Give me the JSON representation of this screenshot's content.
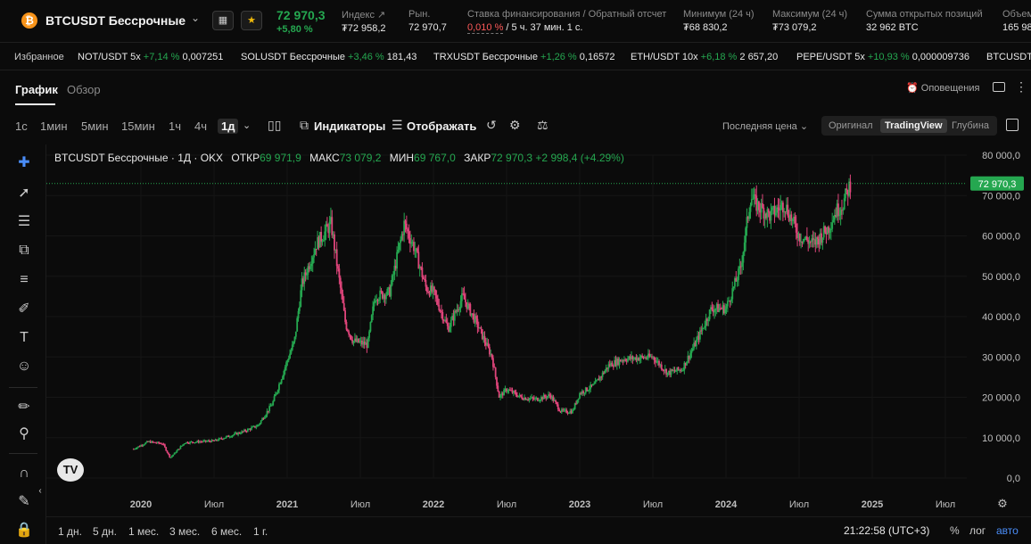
{
  "header": {
    "coin_icon": "bitcoin-icon",
    "coin_symbol": "₿",
    "pair": "BTCUSDT Бессрочные",
    "last_price": "72 970,3",
    "change": "+5,80 %",
    "stats": [
      {
        "label": "Индекс",
        "value": "₮72 958,2"
      },
      {
        "label": "Рын.",
        "value": "72 970,7"
      },
      {
        "label": "Ставка финансирования / Обратный отсчет",
        "value_red": "0,010 %",
        "value": " / 5 ч. 37 мин. 1 с."
      },
      {
        "label": "Минимум (24 ч)",
        "value": "₮68 830,2"
      },
      {
        "label": "Максимум (24 ч)",
        "value": "₮73 079,2"
      },
      {
        "label": "Сумма открытых позиций",
        "value": "32 962 BTC"
      },
      {
        "label": "Объем",
        "value": "165 98"
      }
    ]
  },
  "favorites": {
    "label": "Избранное",
    "items": [
      {
        "name": "NOT/USDT 5x",
        "change": "+7,14 %",
        "price": "0,007251"
      },
      {
        "name": "SOLUSDT Бессрочные",
        "change": "+3,46 %",
        "price": "181,43"
      },
      {
        "name": "TRXUSDT Бессрочные",
        "change": "+1,26 %",
        "price": "0,16572"
      },
      {
        "name": "ETH/USDT 10x",
        "change": "+6,18 %",
        "price": "2 657,20"
      },
      {
        "name": "PEPE/USDT 5x",
        "change": "+10,93 %",
        "price": "0,000009736"
      },
      {
        "name": "BTCUSDT",
        "change": "",
        "price": ""
      }
    ]
  },
  "tabs": {
    "chart": "График",
    "overview": "Обзор",
    "alerts": "Оповещения"
  },
  "toolbar": {
    "timeframes": [
      "1с",
      "1мин",
      "5мин",
      "15мин",
      "1ч",
      "4ч",
      "1д"
    ],
    "selected_timeframe": "1д",
    "indicators": "Индикаторы",
    "display": "Отображать",
    "price_source": "Последняя цена",
    "views": [
      "Оригинал",
      "TradingView",
      "Глубина"
    ],
    "selected_view": "TradingView"
  },
  "legend": {
    "title": "BTCUSDT Бессрочные · 1Д · OKX",
    "open_label": "ОТКР",
    "open": "69 971,9",
    "high_label": "МАКС",
    "high": "73 079,2",
    "low_label": "МИН",
    "low": "69 767,0",
    "close_label": "ЗАКР",
    "close": "72 970,3",
    "change": "+2 998,4 (+4.29%)"
  },
  "chart_data": {
    "type": "line",
    "style": "candlestick",
    "y_range": [
      0,
      80000
    ],
    "y_ticks": [
      "80 000,0",
      "70 000,0",
      "60 000,0",
      "50 000,0",
      "40 000,0",
      "30 000,0",
      "20 000,0",
      "10 000,0",
      "0,0"
    ],
    "x_ticks": [
      "2020",
      "Июл",
      "2021",
      "Июл",
      "2022",
      "Июл",
      "2023",
      "Июл",
      "2024",
      "Июл",
      "2025",
      "Июл"
    ],
    "last_price_label": "72 970,3",
    "last_price": 72970.3,
    "colors": {
      "up": "#25a750",
      "down": "#e0457b"
    },
    "series": [
      {
        "t": [
          2019.95,
          2020.05,
          2020.15,
          2020.2,
          2020.3,
          2020.5,
          2020.7,
          2020.8,
          2020.9,
          2021.0,
          2021.05,
          2021.1,
          2021.2,
          2021.3,
          2021.4,
          2021.45,
          2021.55,
          2021.6,
          2021.7,
          2021.8,
          2021.87,
          2021.95,
          2022.0,
          2022.1,
          2022.2,
          2022.3,
          2022.4,
          2022.45,
          2022.5,
          2022.6,
          2022.7,
          2022.8,
          2022.87,
          2022.95,
          2023.0,
          2023.1,
          2023.2,
          2023.3,
          2023.5,
          2023.6,
          2023.7,
          2023.8,
          2023.9,
          2024.0,
          2024.1,
          2024.17,
          2024.2,
          2024.3,
          2024.4,
          2024.5,
          2024.6,
          2024.7,
          2024.75,
          2024.8,
          2024.85
        ],
        "v": [
          7200,
          9000,
          8500,
          5000,
          8800,
          9200,
          11500,
          13000,
          18500,
          29000,
          34000,
          48000,
          58000,
          63000,
          38000,
          34000,
          33000,
          45000,
          46000,
          63000,
          57000,
          47000,
          46000,
          37000,
          45000,
          38000,
          30000,
          20000,
          22000,
          20000,
          19500,
          20500,
          16500,
          16500,
          21000,
          23000,
          28000,
          29500,
          30000,
          26000,
          27000,
          34000,
          42000,
          42000,
          52000,
          70000,
          68000,
          65000,
          68000,
          60000,
          58000,
          62000,
          66000,
          68000,
          72970
        ]
      }
    ]
  },
  "left_tools": [
    "crosshair-icon",
    "trend-line-icon",
    "horizontal-lines-icon",
    "pattern-icon",
    "fib-icon",
    "brush-icon",
    "text-icon",
    "emoji-icon",
    "ruler-icon",
    "zoom-icon",
    "magnet-icon",
    "lock-pencil-icon",
    "lock-icon"
  ],
  "bottom": {
    "ranges": [
      "1 дн.",
      "5 дн.",
      "1 мес.",
      "3 мес.",
      "6 мес.",
      "1 г."
    ],
    "clock": "21:22:58 (UTC+3)",
    "pct": "%",
    "log": "лог",
    "auto": "авто"
  }
}
